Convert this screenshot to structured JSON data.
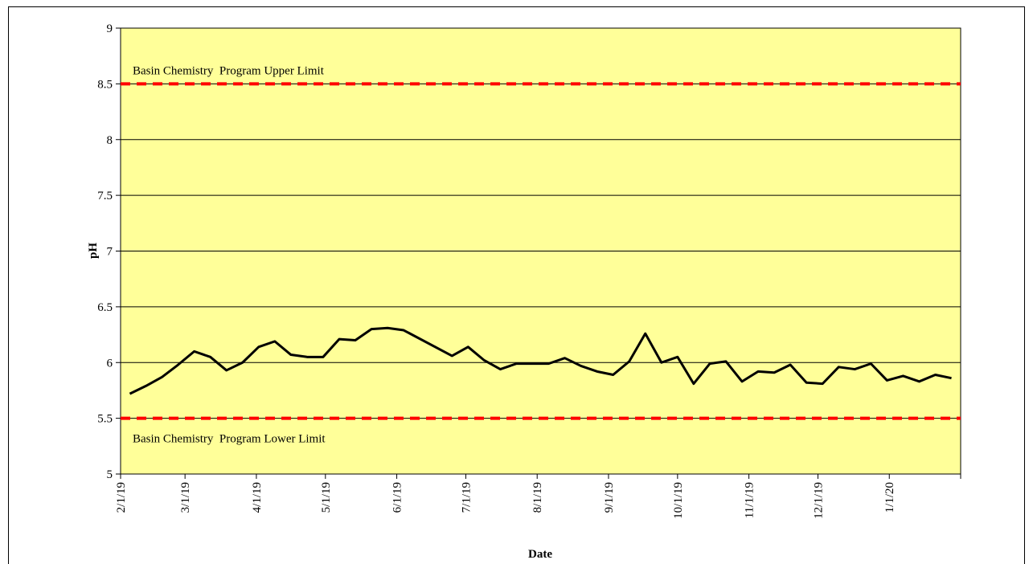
{
  "chart_data": {
    "type": "line",
    "y_label": "pH",
    "x_label": "Date",
    "xlim": [
      "2/1/19",
      "2/1/20"
    ],
    "xticks": [
      "2/1/19",
      "3/1/19",
      "4/1/19",
      "5/1/19",
      "6/1/19",
      "7/1/19",
      "8/1/19",
      "9/1/19",
      "10/1/19",
      "11/1/19",
      "12/1/19",
      "1/1/20"
    ],
    "ylim": [
      5,
      9
    ],
    "yticks": [
      5,
      5.5,
      6,
      6.5,
      7,
      7.5,
      8,
      8.5,
      9
    ],
    "grid": true,
    "plot_background": "#ffff99",
    "x": [
      "2/5/19",
      "2/12/19",
      "2/19/19",
      "2/26/19",
      "3/5/19",
      "3/12/19",
      "3/19/19",
      "3/26/19",
      "4/2/19",
      "4/9/19",
      "4/16/19",
      "4/23/19",
      "4/30/19",
      "5/7/19",
      "5/14/19",
      "5/21/19",
      "5/28/19",
      "6/4/19",
      "6/25/19",
      "7/2/19",
      "7/9/19",
      "7/16/19",
      "7/23/19",
      "7/30/19",
      "8/6/19",
      "8/13/19",
      "8/20/19",
      "8/27/19",
      "9/3/19",
      "9/10/19",
      "9/17/19",
      "9/24/19",
      "10/1/19",
      "10/8/19",
      "10/15/19",
      "10/22/19",
      "10/29/19",
      "11/5/19",
      "11/12/19",
      "11/19/19",
      "11/26/19",
      "12/3/19",
      "12/10/19",
      "12/17/19",
      "12/24/19",
      "12/31/19",
      "1/7/20",
      "1/14/20",
      "1/21/20",
      "1/28/20"
    ],
    "series": [
      {
        "name": "pH",
        "color": "#000000",
        "values": [
          5.72,
          5.79,
          5.87,
          5.98,
          6.1,
          6.05,
          5.93,
          6.0,
          6.14,
          6.19,
          6.07,
          6.05,
          6.05,
          6.21,
          6.2,
          6.3,
          6.31,
          6.29,
          6.06,
          6.14,
          6.02,
          5.94,
          5.99,
          5.99,
          5.99,
          6.04,
          5.97,
          5.92,
          5.89,
          6.01,
          6.26,
          6.0,
          6.05,
          5.81,
          5.99,
          6.01,
          5.83,
          5.92,
          5.91,
          5.98,
          5.82,
          5.81,
          5.96,
          5.94,
          5.99,
          5.84,
          5.88,
          5.83,
          5.89,
          5.86
        ]
      }
    ],
    "reference_lines": [
      {
        "value": 8.5,
        "label": "Basin Chemistry  Program Upper Limit",
        "color": "#ff0000"
      },
      {
        "value": 5.5,
        "label": "Basin Chemistry  Program Lower Limit",
        "color": "#ff0000"
      }
    ]
  }
}
